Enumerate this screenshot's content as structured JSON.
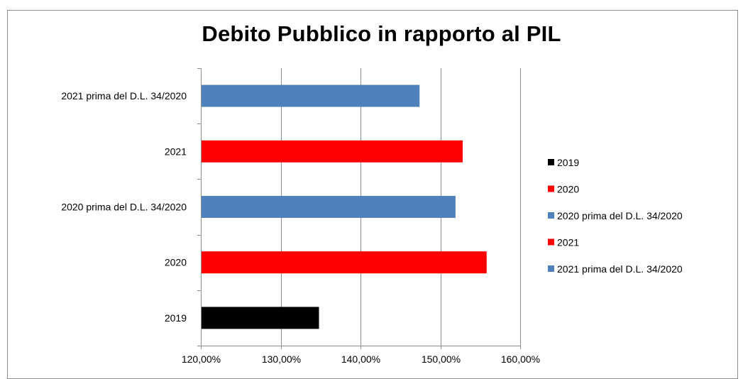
{
  "chart_data": {
    "type": "bar",
    "orientation": "horizontal",
    "title": "Debito Pubblico in rapporto al PIL",
    "xlabel": "",
    "ylabel": "",
    "xlim": [
      1.2,
      1.6
    ],
    "x_ticks": [
      "120,00%",
      "130,00%",
      "140,00%",
      "150,00%",
      "160,00%"
    ],
    "x_tick_values": [
      1.2,
      1.3,
      1.4,
      1.5,
      1.6
    ],
    "grid": true,
    "legend_position": "right",
    "categories": [
      "2019",
      "2020",
      "2020 prima del D.L. 34/2020",
      "2021",
      "2021 prima del D.L. 34/2020"
    ],
    "values": [
      1.348,
      1.558,
      1.519,
      1.528,
      1.474
    ],
    "colors": [
      "#000000",
      "#ff0000",
      "#4f81bd",
      "#ff0000",
      "#4f81bd"
    ],
    "legend": [
      {
        "label": "2019",
        "color": "#000000"
      },
      {
        "label": "2020",
        "color": "#ff0000"
      },
      {
        "label": "2020 prima del D.L. 34/2020",
        "color": "#4f81bd"
      },
      {
        "label": "2021",
        "color": "#ff0000"
      },
      {
        "label": "2021 prima del D.L. 34/2020",
        "color": "#4f81bd"
      }
    ]
  }
}
